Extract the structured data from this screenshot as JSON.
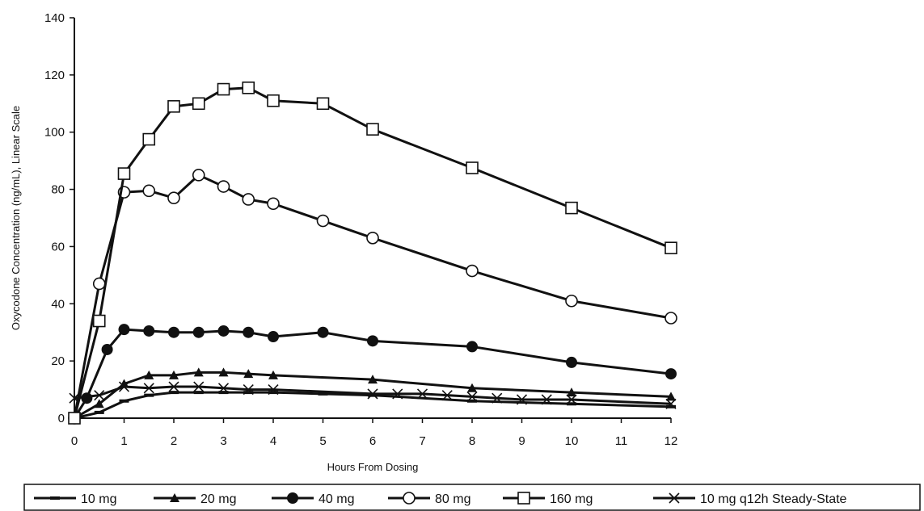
{
  "chart_data": {
    "type": "line",
    "title": "",
    "xlabel": "Hours From Dosing",
    "ylabel": "Oxycodone Concentration (ng/mL), Linear Scale",
    "xlim": [
      0,
      12
    ],
    "ylim": [
      0,
      140
    ],
    "xticks": [
      0,
      1,
      2,
      3,
      4,
      5,
      6,
      7,
      8,
      9,
      10,
      11,
      12
    ],
    "yticks": [
      0,
      20,
      40,
      60,
      80,
      100,
      120,
      140
    ],
    "xtick_labels": [
      "0",
      "1",
      "2",
      "3",
      "4",
      "5",
      "6",
      "7",
      "8",
      "9",
      "10",
      "11",
      "12"
    ],
    "ytick_labels": [
      "0",
      "20",
      "40",
      "60",
      "80",
      "100",
      "120",
      "140"
    ],
    "grid": false,
    "legend_position": "bottom",
    "series": [
      {
        "name": "10 mg",
        "marker": "dash",
        "color": "#111111",
        "x": [
          0,
          0.5,
          1,
          1.5,
          2,
          2.5,
          3,
          3.5,
          4,
          5,
          6,
          8,
          10,
          12
        ],
        "y": [
          0,
          2,
          6,
          8,
          9,
          9,
          9,
          9,
          9,
          8.5,
          8,
          6,
          5,
          4
        ]
      },
      {
        "name": "20 mg",
        "marker": "triangle",
        "color": "#111111",
        "x": [
          0,
          0.5,
          1,
          1.5,
          2,
          2.5,
          3,
          3.5,
          4,
          6,
          8,
          10,
          12
        ],
        "y": [
          0,
          5,
          12,
          15,
          15,
          16,
          16,
          15.5,
          15,
          13.5,
          10.5,
          9,
          7.5
        ]
      },
      {
        "name": "40 mg",
        "marker": "filled-circle",
        "color": "#111111",
        "x": [
          0,
          0.25,
          0.66,
          1,
          1.5,
          2,
          2.5,
          3,
          3.5,
          4,
          5,
          6,
          8,
          10,
          12
        ],
        "y": [
          0,
          7,
          24,
          31,
          30.5,
          30,
          30,
          30.5,
          30,
          28.5,
          30,
          27,
          25,
          19.5,
          15.5
        ]
      },
      {
        "name": "80 mg",
        "marker": "open-circle",
        "color": "#111111",
        "x": [
          0,
          0.5,
          1,
          1.5,
          2,
          2.5,
          3,
          3.5,
          4,
          5,
          6,
          8,
          10,
          12
        ],
        "y": [
          0,
          47,
          79,
          79.5,
          77,
          85,
          81,
          76.5,
          75,
          69,
          63,
          51.5,
          41,
          35
        ]
      },
      {
        "name": "160 mg",
        "marker": "open-square",
        "color": "#111111",
        "x": [
          0,
          0.5,
          1,
          1.5,
          2,
          2.5,
          3,
          3.5,
          4,
          5,
          6,
          8,
          10,
          12
        ],
        "y": [
          0,
          34,
          85.5,
          97.5,
          109,
          110,
          115,
          115.5,
          111,
          110,
          101,
          87.5,
          73.5,
          59.5
        ]
      },
      {
        "name": "10 mg q12h Steady-State",
        "marker": "x",
        "color": "#111111",
        "x": [
          0,
          0.5,
          1,
          1.5,
          2,
          2.5,
          3,
          3.5,
          4,
          6,
          6.5,
          7,
          7.5,
          8,
          8.5,
          9,
          9.5,
          10,
          12
        ],
        "y": [
          7,
          8,
          11,
          10.5,
          11,
          11,
          10.5,
          10,
          10,
          8.5,
          8.5,
          8.5,
          8,
          7.5,
          7,
          6.5,
          6.5,
          6.5,
          5
        ]
      }
    ]
  }
}
